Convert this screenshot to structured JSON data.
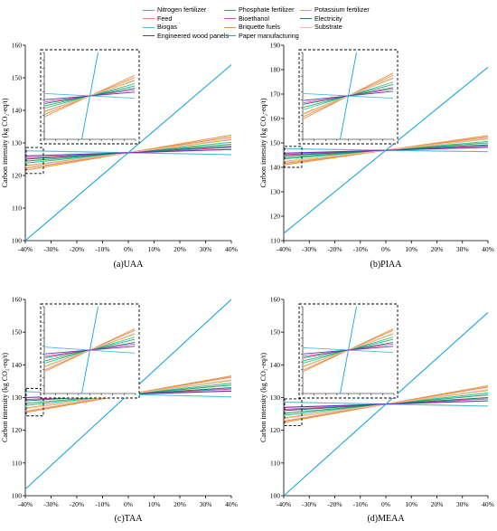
{
  "legend": {
    "items": [
      {
        "label": "Nitrogen fertilizer",
        "color": "#2ec4a0"
      },
      {
        "label": "Phosphate fertilizer",
        "color": "#3aa655"
      },
      {
        "label": "Potassium fertilizer",
        "color": "#c9b21f"
      },
      {
        "label": "Feed",
        "color": "#f08a5a"
      },
      {
        "label": "Bioethanol",
        "color": "#d94fb0"
      },
      {
        "label": "Electricity",
        "color": "#1b7a7a"
      },
      {
        "label": "Biogas",
        "color": "#4dbbd5"
      },
      {
        "label": "Briquette fuels",
        "color": "#e8943a"
      },
      {
        "label": "Substrate",
        "color": "#f4b9b2"
      },
      {
        "label": "Engineered wood panels",
        "color": "#6a2fb0"
      },
      {
        "label": "Paper manufacturing",
        "color": "#18a6e0"
      }
    ]
  },
  "chart_data": [
    {
      "type": "line",
      "caption": "(a)UAA",
      "ylabel": "Carbon intensity (kg CO₂-eq/t)",
      "x": [
        -40,
        40
      ],
      "xticks": [
        "-40%",
        "-30%",
        "-20%",
        "-10%",
        "0%",
        "10%",
        "20%",
        "30%",
        "40%"
      ],
      "ylim": [
        100,
        160
      ],
      "yticks": [
        100,
        110,
        120,
        130,
        140,
        150,
        160
      ],
      "center": 127,
      "series": [
        {
          "color": "#2ec4a0",
          "values": [
            123.8,
            130.2
          ]
        },
        {
          "color": "#3aa655",
          "values": [
            124.4,
            129.6
          ]
        },
        {
          "color": "#c9b21f",
          "values": [
            123.0,
            131.0
          ]
        },
        {
          "color": "#f08a5a",
          "values": [
            122.2,
            131.8
          ]
        },
        {
          "color": "#d94fb0",
          "values": [
            125.4,
            128.6
          ]
        },
        {
          "color": "#1b7a7a",
          "values": [
            125.0,
            129.0
          ]
        },
        {
          "color": "#4dbbd5",
          "values": [
            127.6,
            126.4
          ]
        },
        {
          "color": "#e8943a",
          "values": [
            121.6,
            132.4
          ]
        },
        {
          "color": "#f4b9b2",
          "values": [
            122.8,
            131.2
          ]
        },
        {
          "color": "#6a2fb0",
          "values": [
            126.0,
            128.0
          ]
        },
        {
          "color": "#18a6e0",
          "values": [
            100.0,
            154.0
          ]
        }
      ]
    },
    {
      "type": "line",
      "caption": "(b)PIAA",
      "ylabel": "Carbon intensity (kg CO₂-eq/t)",
      "x": [
        -40,
        40
      ],
      "xticks": [
        "-40%",
        "-30%",
        "-20%",
        "-10%",
        "0%",
        "10%",
        "20%",
        "30%",
        "40%"
      ],
      "ylim": [
        110,
        190
      ],
      "yticks": [
        110,
        120,
        130,
        140,
        150,
        160,
        170,
        180,
        190
      ],
      "center": 147,
      "series": [
        {
          "color": "#2ec4a0",
          "values": [
            143.4,
            150.6
          ]
        },
        {
          "color": "#3aa655",
          "values": [
            144.0,
            150.0
          ]
        },
        {
          "color": "#c9b21f",
          "values": [
            142.4,
            151.6
          ]
        },
        {
          "color": "#f08a5a",
          "values": [
            141.6,
            152.4
          ]
        },
        {
          "color": "#d94fb0",
          "values": [
            145.2,
            148.8
          ]
        },
        {
          "color": "#1b7a7a",
          "values": [
            144.8,
            149.2
          ]
        },
        {
          "color": "#4dbbd5",
          "values": [
            147.6,
            146.4
          ]
        },
        {
          "color": "#e8943a",
          "values": [
            141.0,
            153.0
          ]
        },
        {
          "color": "#f4b9b2",
          "values": [
            142.2,
            151.8
          ]
        },
        {
          "color": "#6a2fb0",
          "values": [
            145.8,
            148.2
          ]
        },
        {
          "color": "#18a6e0",
          "values": [
            113.0,
            181.0
          ]
        }
      ]
    },
    {
      "type": "line",
      "caption": "(c)TAA",
      "ylabel": "Carbon intensity (kg CO₂-eq/t)",
      "x": [
        -40,
        40
      ],
      "xticks": [
        "-40%",
        "-30%",
        "-20%",
        "-10%",
        "0%",
        "10%",
        "20%",
        "30%",
        "40%"
      ],
      "ylim": [
        100,
        160
      ],
      "yticks": [
        100,
        110,
        120,
        130,
        140,
        150,
        160
      ],
      "center": 131,
      "series": [
        {
          "color": "#2ec4a0",
          "values": [
            127.6,
            134.4
          ]
        },
        {
          "color": "#3aa655",
          "values": [
            128.2,
            133.8
          ]
        },
        {
          "color": "#c9b21f",
          "values": [
            126.8,
            135.2
          ]
        },
        {
          "color": "#f08a5a",
          "values": [
            125.8,
            136.2
          ]
        },
        {
          "color": "#d94fb0",
          "values": [
            129.4,
            132.6
          ]
        },
        {
          "color": "#1b7a7a",
          "values": [
            129.0,
            133.0
          ]
        },
        {
          "color": "#4dbbd5",
          "values": [
            131.8,
            130.2
          ]
        },
        {
          "color": "#e8943a",
          "values": [
            125.4,
            136.6
          ]
        },
        {
          "color": "#f4b9b2",
          "values": [
            126.6,
            135.4
          ]
        },
        {
          "color": "#6a2fb0",
          "values": [
            130.0,
            132.0
          ]
        },
        {
          "color": "#18a6e0",
          "values": [
            102.0,
            160.0
          ]
        }
      ]
    },
    {
      "type": "line",
      "caption": "(d)MEAA",
      "ylabel": "Carbon intensity (kg CO₂-eq/t)",
      "x": [
        -40,
        40
      ],
      "xticks": [
        "-40%",
        "-30%",
        "-20%",
        "-10%",
        "0%",
        "10%",
        "20%",
        "30%",
        "40%"
      ],
      "ylim": [
        100,
        160
      ],
      "yticks": [
        100,
        110,
        120,
        130,
        140,
        150,
        160
      ],
      "center": 128,
      "series": [
        {
          "color": "#2ec4a0",
          "values": [
            124.6,
            131.4
          ]
        },
        {
          "color": "#3aa655",
          "values": [
            125.2,
            130.8
          ]
        },
        {
          "color": "#c9b21f",
          "values": [
            123.8,
            132.2
          ]
        },
        {
          "color": "#f08a5a",
          "values": [
            122.8,
            133.2
          ]
        },
        {
          "color": "#d94fb0",
          "values": [
            126.4,
            129.6
          ]
        },
        {
          "color": "#1b7a7a",
          "values": [
            126.0,
            130.0
          ]
        },
        {
          "color": "#4dbbd5",
          "values": [
            128.6,
            127.4
          ]
        },
        {
          "color": "#e8943a",
          "values": [
            122.4,
            133.6
          ]
        },
        {
          "color": "#f4b9b2",
          "values": [
            123.6,
            132.4
          ]
        },
        {
          "color": "#6a2fb0",
          "values": [
            127.0,
            129.0
          ]
        },
        {
          "color": "#18a6e0",
          "values": [
            100.0,
            156.0
          ]
        }
      ]
    }
  ]
}
